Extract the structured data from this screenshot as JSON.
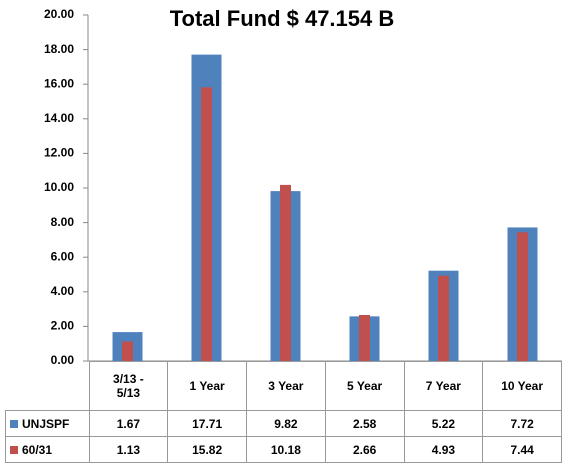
{
  "chart_data": {
    "type": "bar",
    "title": "Total Fund $ 47.154 B",
    "categories": [
      "3/13 - 5/13",
      "1 Year",
      "3 Year",
      "5 Year",
      "7 Year",
      "10 Year"
    ],
    "series": [
      {
        "name": "UNJSPF",
        "color": "#4f81bd",
        "values": [
          1.67,
          17.71,
          9.82,
          2.58,
          5.22,
          7.72
        ]
      },
      {
        "name": "60/31",
        "color": "#c0504d",
        "values": [
          1.13,
          15.82,
          10.18,
          2.66,
          4.93,
          7.44
        ]
      }
    ],
    "ylim": [
      0,
      20
    ],
    "yticks": [
      {
        "value": 0,
        "label": "0.00"
      },
      {
        "value": 2,
        "label": "2.00"
      },
      {
        "value": 4,
        "label": "4.00"
      },
      {
        "value": 6,
        "label": "6.00"
      },
      {
        "value": 8,
        "label": "8.00"
      },
      {
        "value": 10,
        "label": "10.00"
      },
      {
        "value": 12,
        "label": "12.00"
      },
      {
        "value": 14,
        "label": "14.00"
      },
      {
        "value": 16,
        "label": "16.00"
      },
      {
        "value": 18,
        "label": "18.00"
      },
      {
        "value": 20,
        "label": "20.00"
      }
    ]
  }
}
